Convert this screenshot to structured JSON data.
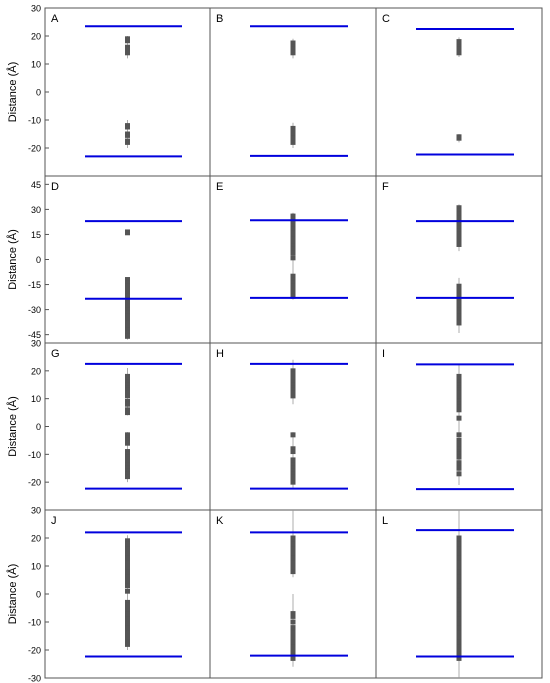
{
  "figure": {
    "ylabel": "Distance (Å)",
    "colors": {
      "membrane_line": "#0000dd",
      "points": "#555555",
      "whisker": "#999999",
      "frame": "#555555"
    }
  },
  "chart_data": [
    {
      "type": "scatter",
      "panel": "A",
      "ylim": [
        -30,
        30
      ],
      "yticks": [
        30,
        20,
        10,
        0,
        -10,
        -20
      ],
      "lines": [
        23.5,
        -23.0
      ],
      "points": [
        19,
        18.3,
        16,
        15.5,
        15,
        14.5,
        14,
        -12,
        -12.5,
        -15,
        -15.5,
        -17.5,
        -18
      ],
      "whiskers": [
        [
          12,
          20
        ],
        [
          -20,
          -10
        ]
      ]
    },
    {
      "type": "scatter",
      "panel": "B",
      "ylim": [
        -30,
        30
      ],
      "yticks": [
        30,
        20,
        10,
        0,
        -10,
        -20
      ],
      "lines": [
        23.5,
        -22.8
      ],
      "points": [
        17.5,
        17,
        16,
        15.5,
        15,
        14.5,
        14,
        -13,
        -14,
        -15.5,
        -16.5,
        -17.5,
        -18
      ],
      "whiskers": [
        [
          12,
          19
        ],
        [
          -20,
          -11
        ]
      ]
    },
    {
      "type": "scatter",
      "panel": "C",
      "ylim": [
        -30,
        30
      ],
      "yticks": [
        30,
        20,
        10,
        0,
        -10,
        -20
      ],
      "lines": [
        22.5,
        -22.3
      ],
      "points": [
        18,
        17,
        16.5,
        16,
        15.5,
        15,
        14.5,
        14,
        -16,
        -16.5
      ],
      "whiskers": [
        [
          12.5,
          19.5
        ],
        [
          -18,
          -15
        ]
      ]
    },
    {
      "type": "scatter",
      "panel": "D",
      "ylim": [
        -50,
        50
      ],
      "yticks": [
        45,
        30,
        15,
        0,
        -15,
        -30,
        -45
      ],
      "lines": [
        23.0,
        -23.5
      ],
      "points": [
        16.5,
        16,
        -12,
        -14,
        -16,
        -18,
        -20,
        -22,
        -24,
        -26,
        -28,
        -30,
        -32,
        -34,
        -36,
        -38,
        -40,
        -42,
        -44,
        -46
      ],
      "whiskers": [
        [
          -48,
          -11
        ]
      ]
    },
    {
      "type": "scatter",
      "panel": "E",
      "ylim": [
        -50,
        50
      ],
      "yticks": [
        45,
        30,
        15,
        0,
        -15,
        -30,
        -45
      ],
      "lines": [
        23.5,
        -23.0
      ],
      "points": [
        26,
        24,
        22,
        20,
        18,
        16,
        14,
        12,
        10,
        8,
        6,
        4,
        1,
        -10,
        -12,
        -14,
        -16,
        -18,
        -20,
        -22
      ],
      "whiskers": [
        [
          -24,
          28
        ]
      ]
    },
    {
      "type": "scatter",
      "panel": "F",
      "ylim": [
        -50,
        50
      ],
      "yticks": [
        45,
        30,
        15,
        0,
        -15,
        -30,
        -45
      ],
      "lines": [
        23.0,
        -23.0
      ],
      "points": [
        31,
        29,
        27,
        25,
        23,
        21,
        19,
        17,
        15,
        13,
        11,
        9,
        -16,
        -18,
        -20,
        -22,
        -24,
        -26,
        -28,
        -30,
        -32,
        -34,
        -36,
        -38
      ],
      "whiskers": [
        [
          5,
          33
        ],
        [
          -44,
          -11
        ]
      ]
    },
    {
      "type": "scatter",
      "panel": "G",
      "ylim": [
        -30,
        30
      ],
      "yticks": [
        30,
        20,
        10,
        0,
        -10,
        -20
      ],
      "lines": [
        22.5,
        -22.3
      ],
      "points": [
        18,
        17,
        16,
        15,
        14,
        13,
        12,
        11,
        9,
        8,
        6,
        5,
        -3,
        -4,
        -5,
        -6,
        -9,
        -10,
        -11,
        -12,
        -13,
        -14,
        -15,
        -16,
        -17,
        -18
      ],
      "whiskers": [
        [
          4,
          21
        ],
        [
          -20,
          -2
        ]
      ]
    },
    {
      "type": "scatter",
      "panel": "H",
      "ylim": [
        -30,
        30
      ],
      "yticks": [
        30,
        20,
        10,
        0,
        -10,
        -20
      ],
      "lines": [
        22.5,
        -22.3
      ],
      "points": [
        20,
        19,
        18,
        17,
        16,
        15,
        14,
        13,
        12,
        11,
        -3,
        -8,
        -9,
        -12,
        -13,
        -14,
        -15,
        -16,
        -17,
        -18,
        -19,
        -20
      ],
      "whiskers": [
        [
          8,
          24
        ],
        [
          -22,
          -2
        ]
      ]
    },
    {
      "type": "scatter",
      "panel": "I",
      "ylim": [
        -30,
        30
      ],
      "yticks": [
        30,
        20,
        10,
        0,
        -10,
        -20
      ],
      "lines": [
        22.3,
        -22.5
      ],
      "points": [
        18,
        17,
        16,
        15,
        14,
        13,
        12,
        11,
        10,
        9,
        8,
        7,
        6,
        3,
        -3,
        -5,
        -6,
        -7,
        -8,
        -9,
        -10,
        -11,
        -13,
        -14,
        -15,
        -17
      ],
      "whiskers": [
        [
          -21,
          22
        ]
      ]
    },
    {
      "type": "scatter",
      "panel": "J",
      "ylim": [
        -30,
        30
      ],
      "yticks": [
        30,
        20,
        10,
        0,
        -10,
        -20,
        -30
      ],
      "lines": [
        22.0,
        -22.3
      ],
      "points": [
        19,
        18,
        17,
        16,
        15,
        14,
        13,
        12,
        11,
        10,
        9,
        8,
        7,
        6,
        5,
        4,
        3,
        1,
        -3,
        -4,
        -5,
        -6,
        -7,
        -8,
        -9,
        -10,
        -11,
        -12,
        -13,
        -14,
        -15,
        -16,
        -17,
        -18
      ],
      "whiskers": [
        [
          -20,
          21
        ]
      ]
    },
    {
      "type": "scatter",
      "panel": "K",
      "ylim": [
        -30,
        30
      ],
      "yticks": [
        30,
        20,
        10,
        0,
        -10,
        -20,
        -30
      ],
      "lines": [
        22.0,
        -22.0
      ],
      "points": [
        20,
        19,
        18,
        17,
        16,
        15,
        14,
        13,
        12,
        11,
        10,
        9,
        8,
        -7,
        -8,
        -10,
        -12,
        -13,
        -14,
        -15,
        -16,
        -17,
        -18,
        -19,
        -20,
        -21,
        -22,
        -23
      ],
      "whiskers": [
        [
          6,
          30
        ],
        [
          -26,
          0
        ]
      ]
    },
    {
      "type": "scatter",
      "panel": "L",
      "ylim": [
        -30,
        30
      ],
      "yticks": [
        30,
        20,
        10,
        0,
        -10,
        -20,
        -30
      ],
      "lines": [
        22.8,
        -22.3
      ],
      "points": [
        20,
        19,
        18,
        17,
        16,
        15,
        14,
        13,
        12,
        11,
        10,
        9,
        8,
        7,
        6,
        5,
        4,
        3,
        2,
        1,
        0,
        -1,
        -2,
        -3,
        -4,
        -5,
        -6,
        -7,
        -8,
        -9,
        -10,
        -11,
        -12,
        -13,
        -14,
        -15,
        -16,
        -17,
        -18,
        -19,
        -20,
        -21,
        -22,
        -23
      ],
      "whiskers": [
        [
          -30,
          30
        ]
      ]
    }
  ]
}
